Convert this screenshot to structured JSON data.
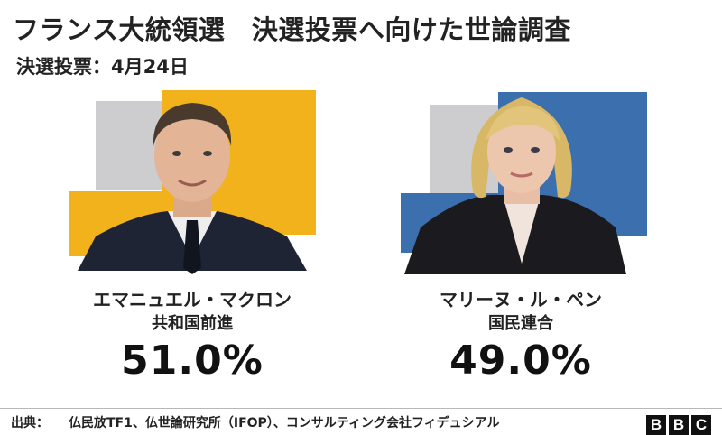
{
  "header": {
    "title": "フランス大統領選　決選投票へ向けた世論調査",
    "subtitle": "決選投票：4月24日"
  },
  "chart_data": {
    "type": "bar",
    "title": "フランス大統領選　決選投票へ向けた世論調査",
    "subtitle": "決選投票：4月24日",
    "categories": [
      "エマニュエル・マクロン",
      "マリーヌ・ル・ペン"
    ],
    "values": [
      51.0,
      49.0
    ],
    "unit": "%"
  },
  "candidates": [
    {
      "name": "エマニュエル・マクロン",
      "party": "共和国前進",
      "percent_label": "51.0%",
      "value": 51.0,
      "color": "#f2b21c",
      "portrait_icon": "portrait-man-suit-icon"
    },
    {
      "name": "マリーヌ・ル・ペン",
      "party": "国民連合",
      "percent_label": "49.0%",
      "value": 49.0,
      "color": "#3c6fad",
      "portrait_icon": "portrait-woman-blonde-icon"
    }
  ],
  "colors": {
    "accent_secondary": "#cdcdd0",
    "text": "#222222"
  },
  "footer": {
    "source_label": "出典：",
    "source_text": "仏民放TF1、仏世論研究所（IFOP）、コンサルティング会社フィデュシアル",
    "logo_letters": [
      "B",
      "B",
      "C"
    ]
  }
}
